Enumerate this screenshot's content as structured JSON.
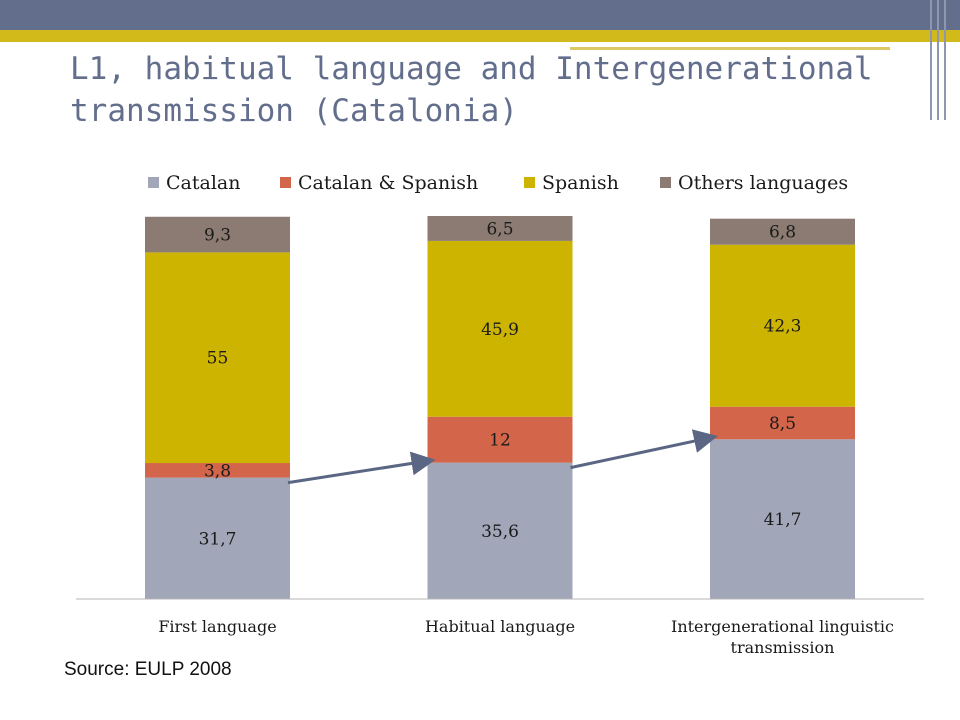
{
  "slide": {
    "title": "L1, habitual language and Intergenerational transmission (Catalonia)",
    "source": "Source: EULP 2008"
  },
  "chart_data": {
    "type": "bar",
    "stacked": true,
    "categories": [
      "First language",
      "Habitual language",
      "Intergenerational linguistic transmission"
    ],
    "series": [
      {
        "name": "Catalan",
        "values": [
          31.7,
          35.6,
          41.7
        ],
        "labels": [
          "31,7",
          "35,6",
          "41,7"
        ],
        "color": "#a1a6b8"
      },
      {
        "name": "Catalan & Spanish",
        "values": [
          3.8,
          12,
          8.5
        ],
        "labels": [
          "3,8",
          "12",
          "8,5"
        ],
        "color": "#d2654a"
      },
      {
        "name": "Spanish",
        "values": [
          55,
          45.9,
          42.3
        ],
        "labels": [
          "55",
          "45,9",
          "42,3"
        ],
        "color": "#cdb400"
      },
      {
        "name": "Others languages",
        "values": [
          9.3,
          6.5,
          6.8
        ],
        "labels": [
          "9,3",
          "6,5",
          "6,8"
        ],
        "color": "#8b7b72"
      }
    ],
    "ylim": [
      0,
      100
    ],
    "legend_position": "top",
    "annotations": [
      "arrow from First language to Habitual language",
      "arrow from Habitual language to Intergenerational linguistic transmission"
    ]
  }
}
